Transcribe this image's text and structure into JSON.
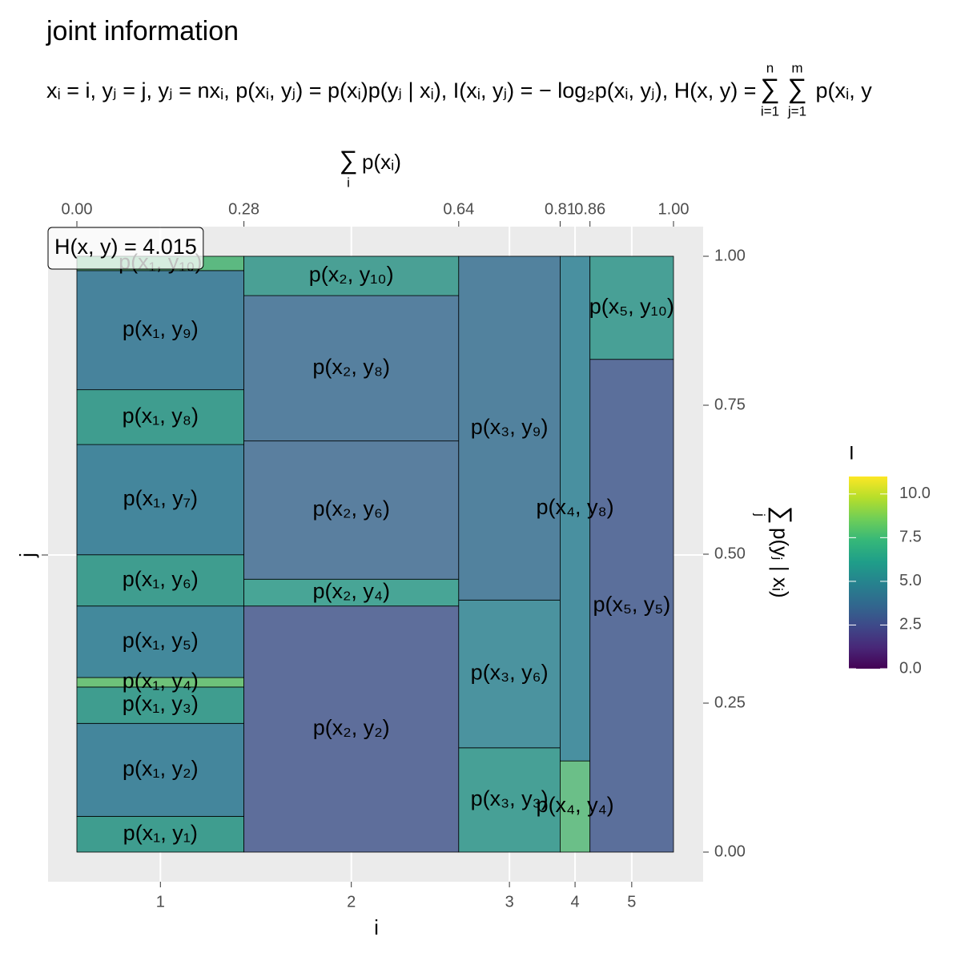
{
  "chart_data": {
    "type": "mosaic",
    "title": "joint information",
    "subtitle": {
      "text": "xᵢ = i, yⱼ = j, yⱼ = nxᵢ, p(xᵢ, yⱼ) = p(xᵢ)p(yⱼ | xᵢ), I(xᵢ, yⱼ) = − log₂p(xᵢ, yⱼ), H(x, y) =",
      "sums": [
        {
          "symbol": "∑",
          "upper": "n",
          "lower": "i=1"
        },
        {
          "symbol": "∑",
          "upper": "m",
          "lower": "j=1"
        }
      ],
      "tail": "p(xᵢ, y"
    },
    "annotation": "H(x, y) = 4.015",
    "x_title": "i",
    "y_title": "j",
    "top_title": {
      "symbol": "∑",
      "lower": "i",
      "text": "p(xᵢ)"
    },
    "right_title": {
      "symbol": "∑",
      "lower": "j",
      "text": "p(yⱼ | xᵢ)"
    },
    "categories": [
      "1",
      "2",
      "3",
      "4",
      "5"
    ],
    "columns": [
      {
        "width": 0.28,
        "cells": [
          {
            "label": "p(x₁, y₁)",
            "value": 0.06,
            "color": "#3f9d8f"
          },
          {
            "label": "p(x₁, y₂)",
            "value": 0.156,
            "color": "#44869c"
          },
          {
            "label": "p(x₁, y₃)",
            "value": 0.061,
            "color": "#3f9d8f"
          },
          {
            "label": "p(x₁, y₄)",
            "value": 0.016,
            "color": "#6ec27a"
          },
          {
            "label": "p(x₁, y₅)",
            "value": 0.12,
            "color": "#43899c"
          },
          {
            "label": "p(x₁, y₆)",
            "value": 0.086,
            "color": "#3f9d8f"
          },
          {
            "label": "p(x₁, y₇)",
            "value": 0.185,
            "color": "#44869c"
          },
          {
            "label": "p(x₁, y₈)",
            "value": 0.092,
            "color": "#3f9d8f"
          },
          {
            "label": "p(x₁, y₉)",
            "value": 0.2,
            "color": "#47839c"
          },
          {
            "label": "p(x₁, y₁₀)",
            "value": 0.024,
            "color": "#5cb981"
          }
        ]
      },
      {
        "width": 0.36,
        "cells": [
          {
            "label": "p(x₂, y₂)",
            "value": 0.413,
            "color": "#5e6e9b"
          },
          {
            "label": "p(x₂, y₄)",
            "value": 0.045,
            "color": "#48a596"
          },
          {
            "label": "p(x₂, y₆)",
            "value": 0.232,
            "color": "#5a7f9f"
          },
          {
            "label": "p(x₂, y₈)",
            "value": 0.244,
            "color": "#56809f"
          },
          {
            "label": "p(x₂, y₁₀)",
            "value": 0.066,
            "color": "#4aa095"
          }
        ]
      },
      {
        "width": 0.17,
        "cells": [
          {
            "label": "p(x₃, y₃)",
            "value": 0.175,
            "color": "#47a096"
          },
          {
            "label": "p(x₃, y₆)",
            "value": 0.248,
            "color": "#4b939f"
          },
          {
            "label": "p(x₃, y₉)",
            "value": 0.577,
            "color": "#52829e"
          }
        ]
      },
      {
        "width": 0.05,
        "cells": [
          {
            "label": "p(x₄, y₄)",
            "value": 0.153,
            "color": "#6bbf88"
          },
          {
            "label": "p(x₄, y₈)",
            "value": 0.847,
            "color": "#4990a0"
          }
        ]
      },
      {
        "width": 0.14,
        "cells": [
          {
            "label": "p(x₅, y₅)",
            "value": 0.827,
            "color": "#5b6f9b"
          },
          {
            "label": "p(x₅, y₁₀)",
            "value": 0.173,
            "color": "#48a096"
          }
        ]
      }
    ],
    "xlim": [
      0,
      1
    ],
    "xticks": [
      {
        "value": 0,
        "label": "0.00"
      },
      0.28,
      0.64,
      0.81,
      0.86,
      {
        "value": 1,
        "label": "1.00"
      }
    ],
    "ylim": [
      0,
      1
    ],
    "yticks": [
      {
        "value": 0,
        "label": "0.00"
      },
      0.25,
      {
        "value": 0.5,
        "label": "0.50"
      },
      0.75,
      {
        "value": 1,
        "label": "1.00"
      }
    ],
    "legend": {
      "title": "I",
      "lim": [
        0,
        11
      ],
      "ticks": [
        {
          "value": 0,
          "label": "0.0"
        },
        2.5,
        {
          "value": 5,
          "label": "5.0"
        },
        7.5,
        {
          "value": 10,
          "label": "10.0"
        }
      ],
      "colors": [
        "#440154",
        "#482878",
        "#3e4989",
        "#31688e",
        "#26828e",
        "#1f9e89",
        "#35b779",
        "#6ece58",
        "#b5de2b",
        "#fde725"
      ]
    }
  }
}
